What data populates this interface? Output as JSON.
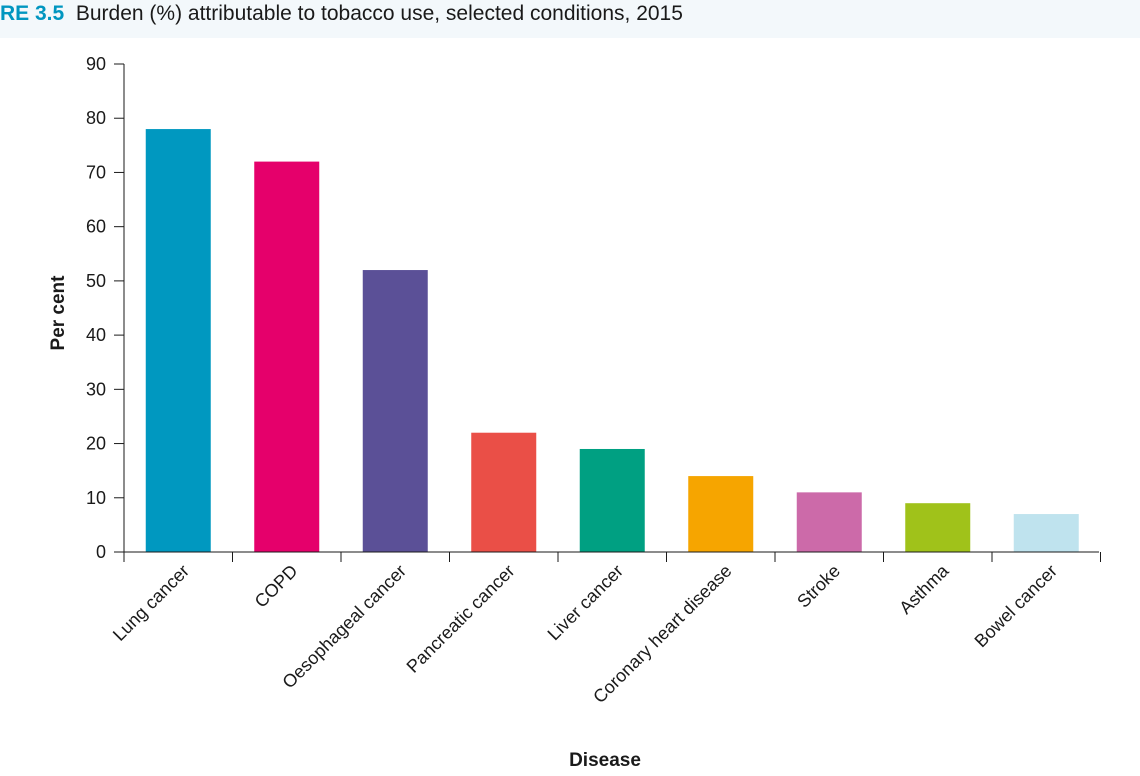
{
  "figure": {
    "label": "RE 3.5",
    "title": "Burden (%) attributable to tobacco use, selected conditions, 2015"
  },
  "chart_data": {
    "type": "bar",
    "categories": [
      "Lung cancer",
      "COPD",
      "Oesophageal cancer",
      "Pancreatic cancer",
      "Liver cancer",
      "Coronary heart disease",
      "Stroke",
      "Asthma",
      "Bowel cancer"
    ],
    "values": [
      78,
      72,
      52,
      22,
      19,
      14,
      11,
      9,
      7
    ],
    "colors": [
      "#0098c0",
      "#e5006b",
      "#5b5097",
      "#ea4f47",
      "#00a082",
      "#f6a500",
      "#cc6aa9",
      "#a0c21a",
      "#bfe3ee"
    ],
    "xlabel": "Disease",
    "ylabel": "Per cent",
    "ylim": [
      0,
      90
    ],
    "yticks": [
      "0",
      "10",
      "20",
      "30",
      "40",
      "50",
      "60",
      "70",
      "80",
      "90"
    ],
    "grid": false,
    "legend": "none"
  }
}
